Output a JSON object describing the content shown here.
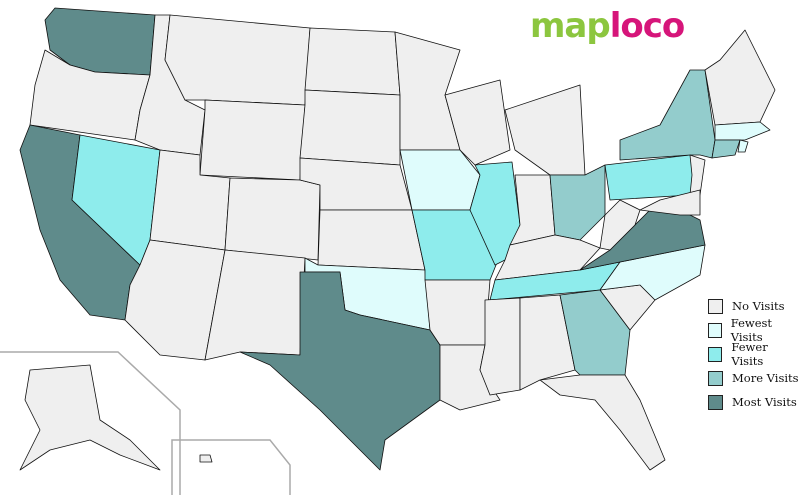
{
  "logo": {
    "part1": "map",
    "part2": "loco"
  },
  "legend": [
    {
      "key": "none",
      "label": "No Visits",
      "color": "#efefef"
    },
    {
      "key": "fewest",
      "label": "Fewest Visits",
      "color": "#dffcfc"
    },
    {
      "key": "fewer",
      "label": "Fewer Visits",
      "color": "#8eecec"
    },
    {
      "key": "more",
      "label": "More Visits",
      "color": "#93cccc"
    },
    {
      "key": "most",
      "label": "Most Visits",
      "color": "#5f8b8b"
    }
  ],
  "states": {
    "WA": "most",
    "CA": "most",
    "TX": "most",
    "VA": "most",
    "NY": "more",
    "OH": "more",
    "GA": "more",
    "CT": "more",
    "NV": "fewer",
    "IL": "fewer",
    "MO": "fewer",
    "TN": "fewer",
    "PA": "fewer",
    "IA": "fewest",
    "OK": "fewest",
    "NC": "fewest",
    "MA": "fewest",
    "RI": "fewest",
    "OR": "none",
    "ID": "none",
    "MT": "none",
    "WY": "none",
    "UT": "none",
    "CO": "none",
    "AZ": "none",
    "NM": "none",
    "ND": "none",
    "SD": "none",
    "NE": "none",
    "KS": "none",
    "MN": "none",
    "AR": "none",
    "LA": "none",
    "WI": "none",
    "MI": "none",
    "IN": "none",
    "KY": "none",
    "MS": "none",
    "AL": "none",
    "FL": "none",
    "SC": "none",
    "WV": "none",
    "NJ": "none",
    "MD": "none",
    "NE_ME": "none",
    "AK": "none",
    "HI": "none"
  }
}
